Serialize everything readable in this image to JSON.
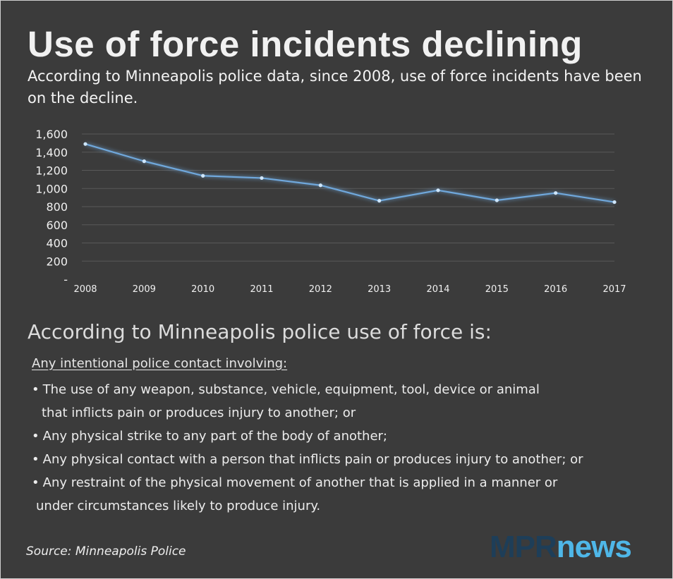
{
  "header": {
    "title": "Use of force incidents declining",
    "subtitle": "According to Minneapolis police data, since 2008, use of force incidents have been on the decline."
  },
  "chart_data": {
    "type": "line",
    "title": "",
    "xlabel": "",
    "ylabel": "",
    "x": [
      "2008",
      "2009",
      "2010",
      "2011",
      "2012",
      "2013",
      "2014",
      "2015",
      "2016",
      "2017"
    ],
    "series": [
      {
        "values": [
          1490,
          1300,
          1140,
          1115,
          1035,
          865,
          980,
          870,
          950,
          850
        ]
      }
    ],
    "ylim": [
      0,
      1600
    ],
    "yticks": [
      0,
      200,
      400,
      600,
      800,
      1000,
      1200,
      1400,
      1600
    ],
    "ytick_labels": [
      "-",
      "200",
      "400",
      "600",
      "800",
      "1,000",
      "1,200",
      "1,400",
      "1,600"
    ],
    "grid": true,
    "legend": "none",
    "colors": {
      "line": "#6fa8dc",
      "grid": "#595959",
      "text": "#f0f0f0"
    }
  },
  "definition": {
    "heading": "According to Minneapolis police use of force is:",
    "intro": "Any intentional police contact involving:",
    "bullet": "•",
    "items": [
      {
        "line1": "The use of any weapon, substance, vehicle, equipment, tool, device or animal",
        "line2": "that inflicts pain or produces injury to another; or"
      },
      {
        "line1": "Any physical strike to any part of the body of another;"
      },
      {
        "line1": "Any physical contact with a person that inflicts pain or produces injury to another; or"
      },
      {
        "line1": "Any restraint of the physical movement of another that is applied in a manner or",
        "line2": "under circumstances likely to produce injury."
      }
    ]
  },
  "footer": {
    "source": "Source: Minneapolis Police",
    "logo_mpr": "MPR",
    "logo_news": "news",
    "logo_colors": {
      "mpr": "#1e3e58",
      "news": "#4fb7e8"
    }
  }
}
